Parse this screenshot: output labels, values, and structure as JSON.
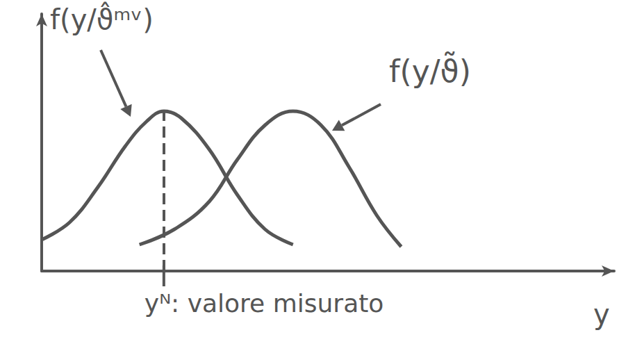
{
  "chart_data": {
    "type": "line",
    "xlabel": "y",
    "xlim": [
      0,
      8.2
    ],
    "ylim": [
      0,
      3.7
    ],
    "tick_labels": false,
    "grid": false,
    "color": "#555555",
    "line_style": "solid",
    "series": [
      {
        "name": "f(y/ϑ̂ᵐᵛ)",
        "x": [
          0,
          0.4,
          0.8,
          1.2,
          1.5,
          1.75,
          2.0,
          2.4,
          2.8,
          3.2,
          3.6
        ],
        "values": [
          0.45,
          0.7,
          1.2,
          1.8,
          2.15,
          2.3,
          2.2,
          1.75,
          1.1,
          0.6,
          0.38
        ]
      },
      {
        "name": "f(y/ϑ̃)",
        "x": [
          1.4,
          1.9,
          2.4,
          2.8,
          3.2,
          3.6,
          4.0,
          4.4,
          4.8,
          5.15
        ],
        "values": [
          0.38,
          0.6,
          1.0,
          1.6,
          2.1,
          2.3,
          2.1,
          1.5,
          0.8,
          0.35
        ]
      }
    ],
    "measured": {
      "x": 1.75,
      "label": "yᴺ: valore misurato",
      "line_style": "dashed"
    }
  }
}
